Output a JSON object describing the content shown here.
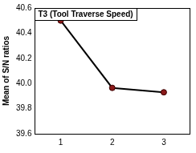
{
  "chart_data": {
    "type": "line",
    "title": "T3 (Tool Traverse Speed)",
    "y_label": "Mean of S/N ratios",
    "categories": [
      "1",
      "2",
      "3"
    ],
    "values": [
      40.5,
      39.965,
      39.93
    ],
    "color": "#000000",
    "marker": "circle",
    "ylim": [
      39.6,
      40.6
    ],
    "yticks": [
      39.6,
      39.8,
      {
        "value": 40,
        "label": "40.0"
      },
      40.2,
      40.4,
      40.6
    ],
    "grid": false
  }
}
